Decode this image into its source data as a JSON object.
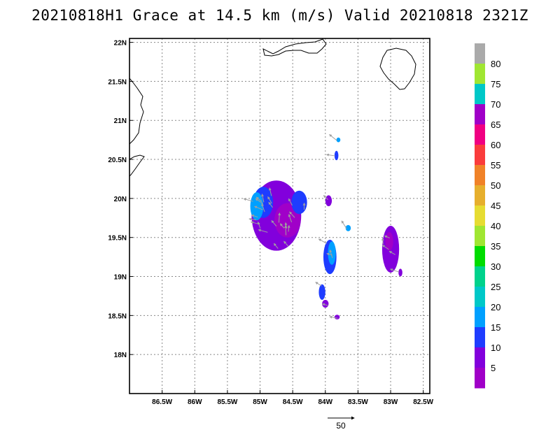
{
  "title": "20210818H1 Grace at 14.5 km (m/s) Valid 20210818 2321Z",
  "map": {
    "lon_range": [
      -87.0,
      -82.4
    ],
    "lat_range": [
      17.5,
      22.05
    ],
    "x_ticks": [
      {
        "lon": -86.5,
        "label": "86.5W"
      },
      {
        "lon": -86.0,
        "label": "86W"
      },
      {
        "lon": -85.5,
        "label": "85.5W"
      },
      {
        "lon": -85.0,
        "label": "85W"
      },
      {
        "lon": -84.5,
        "label": "84.5W"
      },
      {
        "lon": -84.0,
        "label": "84W"
      },
      {
        "lon": -83.5,
        "label": "83.5W"
      },
      {
        "lon": -83.0,
        "label": "83W"
      },
      {
        "lon": -82.5,
        "label": "82.5W"
      }
    ],
    "y_ticks": [
      {
        "lat": 22.0,
        "label": "22N"
      },
      {
        "lat": 21.5,
        "label": "21.5N"
      },
      {
        "lat": 21.0,
        "label": "21N"
      },
      {
        "lat": 20.5,
        "label": "20.5N"
      },
      {
        "lat": 20.0,
        "label": "20N"
      },
      {
        "lat": 19.5,
        "label": "19.5N"
      },
      {
        "lat": 19.0,
        "label": "19N"
      },
      {
        "lat": 18.5,
        "label": "18.5N"
      },
      {
        "lat": 18.0,
        "label": "18N"
      }
    ],
    "grid": true
  },
  "colorbar": {
    "labels": [
      "5",
      "10",
      "15",
      "20",
      "25",
      "30",
      "35",
      "40",
      "45",
      "50",
      "55",
      "60",
      "65",
      "70",
      "75",
      "80"
    ],
    "colors": [
      "#a000c8",
      "#8200dc",
      "#1e3cff",
      "#00a0ff",
      "#00c8c8",
      "#00d28c",
      "#00dc00",
      "#a0e632",
      "#e6dc32",
      "#e6af2d",
      "#f08228",
      "#fa3c3c",
      "#f00082",
      "#a000c8",
      "#00c8c8",
      "#a0e632",
      "#aaaaaa"
    ]
  },
  "echo_regions": [
    {
      "lon": -84.75,
      "lat": 19.78,
      "rx": 0.38,
      "ry": 0.45,
      "color": "#8200dc"
    },
    {
      "lon": -84.58,
      "lat": 19.72,
      "rx": 0.2,
      "ry": 0.22,
      "color": "#a000c8"
    },
    {
      "lon": -84.95,
      "lat": 19.95,
      "rx": 0.15,
      "ry": 0.2,
      "color": "#1e3cff"
    },
    {
      "lon": -85.05,
      "lat": 19.9,
      "rx": 0.1,
      "ry": 0.18,
      "color": "#00a0ff"
    },
    {
      "lon": -84.4,
      "lat": 19.95,
      "rx": 0.12,
      "ry": 0.15,
      "color": "#1e3cff"
    },
    {
      "lon": -83.93,
      "lat": 19.25,
      "rx": 0.1,
      "ry": 0.22,
      "color": "#1e3cff"
    },
    {
      "lon": -83.9,
      "lat": 19.3,
      "rx": 0.06,
      "ry": 0.15,
      "color": "#00a0ff"
    },
    {
      "lon": -83.0,
      "lat": 19.35,
      "rx": 0.13,
      "ry": 0.3,
      "color": "#8200dc"
    },
    {
      "lon": -83.02,
      "lat": 19.45,
      "rx": 0.06,
      "ry": 0.12,
      "color": "#a000c8"
    },
    {
      "lon": -83.95,
      "lat": 19.97,
      "rx": 0.05,
      "ry": 0.07,
      "color": "#8200dc"
    },
    {
      "lon": -83.83,
      "lat": 20.55,
      "rx": 0.03,
      "ry": 0.06,
      "color": "#1e3cff"
    },
    {
      "lon": -83.8,
      "lat": 20.75,
      "rx": 0.03,
      "ry": 0.03,
      "color": "#00a0ff"
    },
    {
      "lon": -84.05,
      "lat": 18.8,
      "rx": 0.05,
      "ry": 0.1,
      "color": "#1e3cff"
    },
    {
      "lon": -84.0,
      "lat": 18.65,
      "rx": 0.05,
      "ry": 0.05,
      "color": "#8200dc"
    },
    {
      "lon": -83.82,
      "lat": 18.48,
      "rx": 0.04,
      "ry": 0.03,
      "color": "#8200dc"
    },
    {
      "lon": -83.65,
      "lat": 19.62,
      "rx": 0.04,
      "ry": 0.04,
      "color": "#00a0ff"
    },
    {
      "lon": -82.85,
      "lat": 19.05,
      "rx": 0.03,
      "ry": 0.05,
      "color": "#8200dc"
    }
  ],
  "reference_vector": {
    "label": "50"
  }
}
